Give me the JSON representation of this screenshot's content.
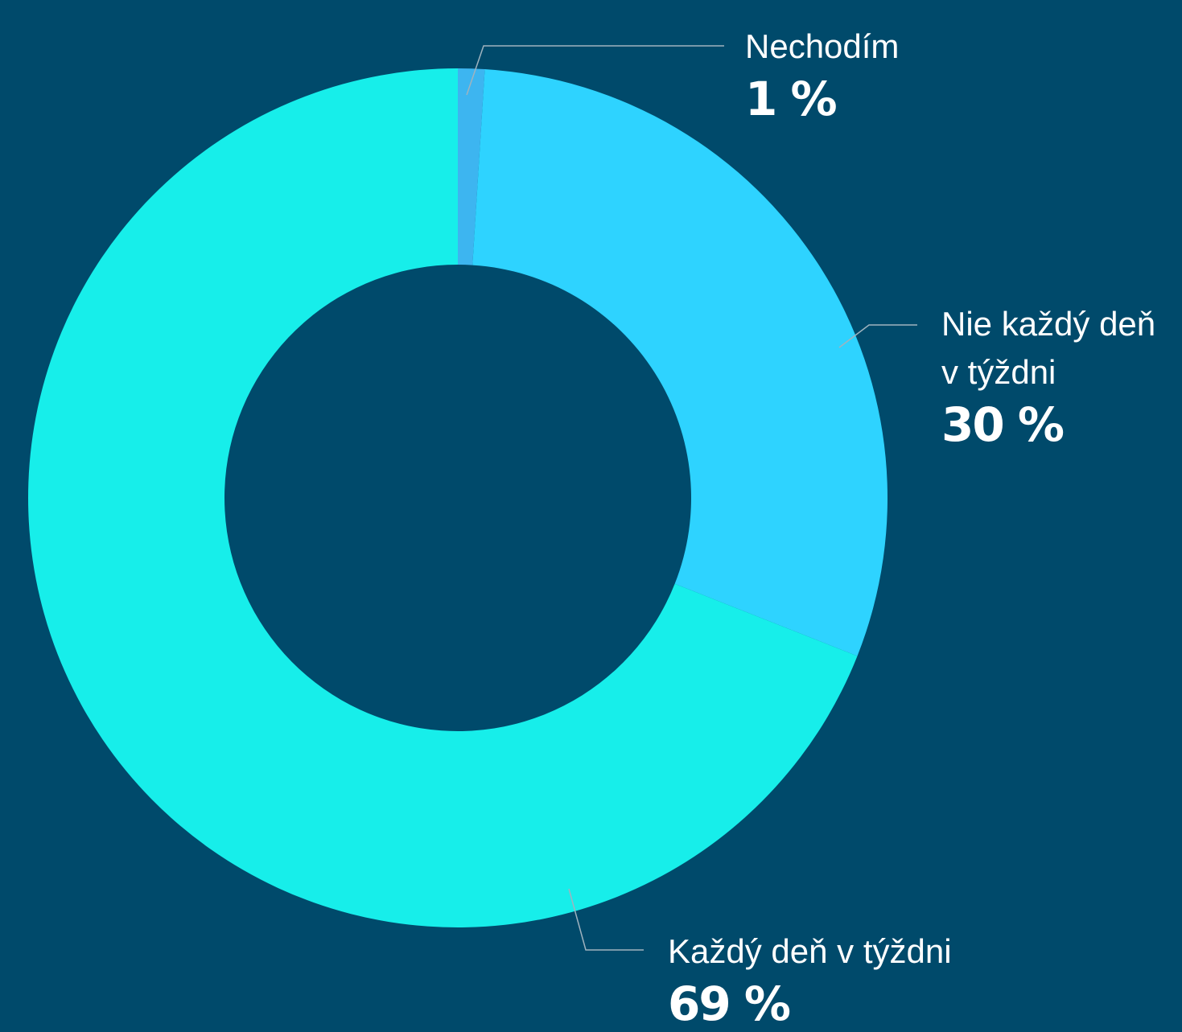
{
  "chart_data": {
    "type": "donut",
    "categories": [
      "Nechodím",
      "Nie každý deň v týždni",
      "Každý deň v týždni"
    ],
    "values": [
      1,
      30,
      69
    ],
    "value_labels": [
      "1 %",
      "30 %",
      "69 %"
    ],
    "colors": [
      "#3db5f0",
      "#2ed3ff",
      "#17eeea"
    ]
  }
}
